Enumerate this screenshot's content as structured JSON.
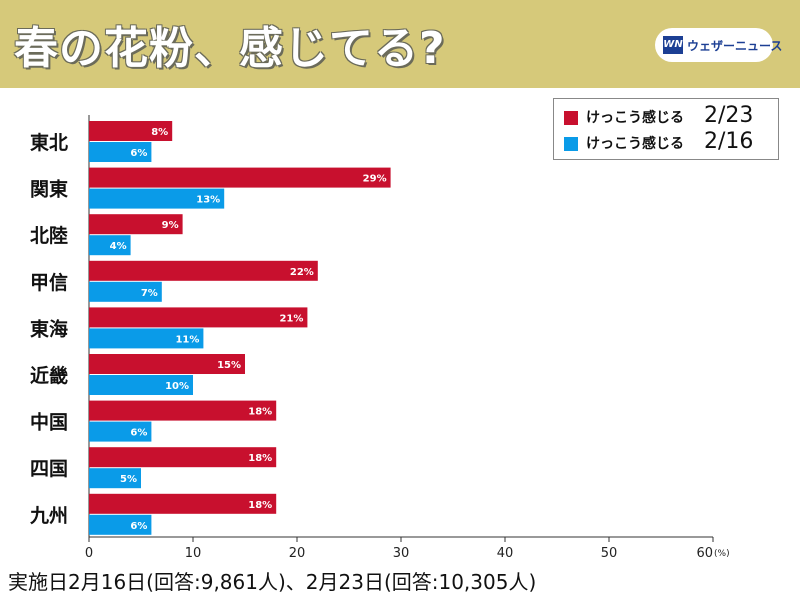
{
  "header": {
    "title": "春の花粉、感じてる?",
    "logo_mark": "WN",
    "logo_text": "ウェザーニュース"
  },
  "legend": {
    "items": [
      {
        "label": "けっこう感じる",
        "date": "2/23",
        "color": "#c8102e"
      },
      {
        "label": "けっこう感じる",
        "date": "2/16",
        "color": "#0a9be8"
      }
    ]
  },
  "footer": {
    "note": "実施日2月16日(回答:9,861人)、2月23日(回答:10,305人)"
  },
  "chart_data": {
    "type": "bar",
    "orientation": "horizontal",
    "categories": [
      "東北",
      "関東",
      "北陸",
      "甲信",
      "東海",
      "近畿",
      "中国",
      "四国",
      "九州"
    ],
    "series": [
      {
        "name": "けっこう感じる 2/23",
        "color": "#c8102e",
        "values": [
          8,
          29,
          9,
          22,
          21,
          15,
          18,
          18,
          18
        ]
      },
      {
        "name": "けっこう感じる 2/16",
        "color": "#0a9be8",
        "values": [
          6,
          13,
          4,
          7,
          11,
          10,
          6,
          5,
          6
        ]
      }
    ],
    "value_suffix": "%",
    "xlim": [
      0,
      60
    ],
    "xticks": [
      0,
      10,
      20,
      30,
      40,
      50,
      60
    ],
    "xunit": "(%)",
    "grid": false,
    "legend_position": "top-right"
  }
}
